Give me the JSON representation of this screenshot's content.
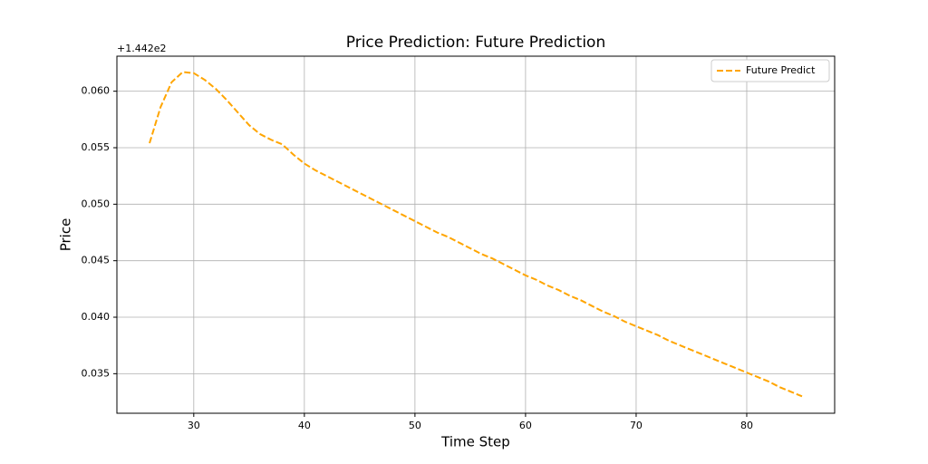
{
  "chart_data": {
    "type": "line",
    "title": "Price Prediction: Future Prediction",
    "xlabel": "Time Step",
    "ylabel": "Price",
    "offset_text": "+1.442e2",
    "x": [
      26,
      27,
      28,
      29,
      30,
      31,
      32,
      33,
      34,
      35,
      36,
      37,
      38,
      39,
      40,
      41,
      42,
      43,
      44,
      45,
      46,
      47,
      48,
      49,
      50,
      51,
      52,
      53,
      54,
      55,
      56,
      57,
      58,
      59,
      60,
      61,
      62,
      63,
      64,
      65,
      66,
      67,
      68,
      69,
      70,
      71,
      72,
      73,
      74,
      75,
      76,
      77,
      78,
      79,
      80,
      81,
      82,
      83,
      84,
      85
    ],
    "series": [
      {
        "name": "Future Predict",
        "color": "#ffa500",
        "dashed": true,
        "values": [
          0.0554,
          0.0586,
          0.0608,
          0.0617,
          0.0616,
          0.061,
          0.0602,
          0.0592,
          0.0581,
          0.057,
          0.0562,
          0.0557,
          0.0553,
          0.0544,
          0.0536,
          0.053,
          0.0525,
          0.052,
          0.0515,
          0.051,
          0.0505,
          0.05,
          0.0495,
          0.049,
          0.0485,
          0.048,
          0.0475,
          0.0471,
          0.0466,
          0.0461,
          0.0456,
          0.0452,
          0.0447,
          0.0442,
          0.0437,
          0.0433,
          0.0428,
          0.0424,
          0.0419,
          0.0415,
          0.041,
          0.0405,
          0.0401,
          0.0396,
          0.0392,
          0.0388,
          0.0384,
          0.0379,
          0.0375,
          0.0371,
          0.0367,
          0.0363,
          0.0359,
          0.0355,
          0.0351,
          0.0347,
          0.0343,
          0.0338,
          0.0334,
          0.033
        ]
      }
    ],
    "xlim": [
      23.05,
      87.95
    ],
    "xticks": [
      30,
      40,
      50,
      60,
      70,
      80
    ],
    "ylim": [
      0.0315,
      0.0631
    ],
    "yticks": [
      0.035,
      {
        "value": 0.04,
        "label": "0.040"
      },
      0.045,
      {
        "value": 0.05,
        "label": "0.050"
      },
      0.055,
      {
        "value": 0.06,
        "label": "0.060"
      }
    ],
    "grid": true,
    "legend": "upper right"
  }
}
